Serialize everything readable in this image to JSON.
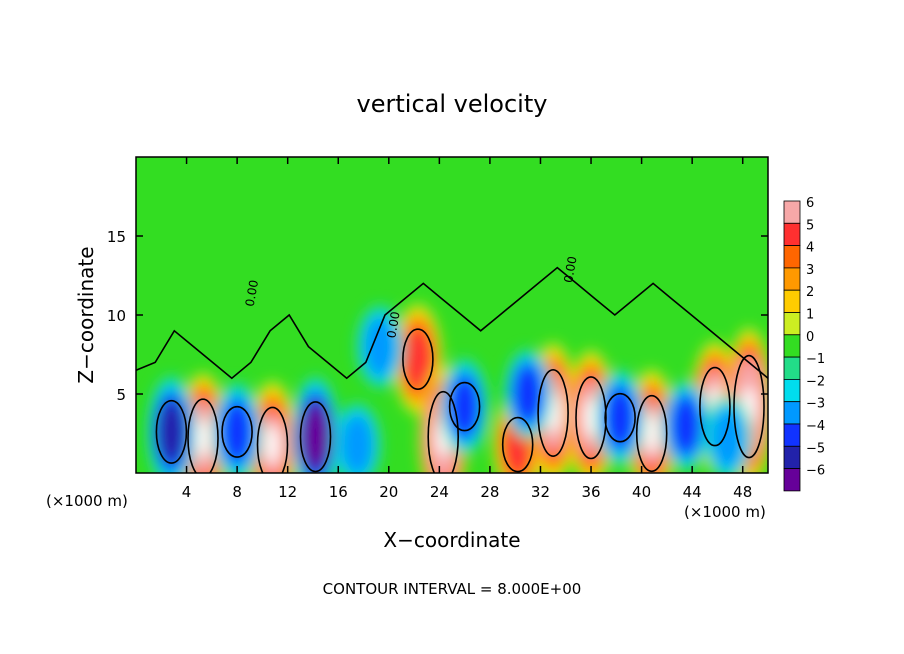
{
  "chart_data": {
    "type": "heatmap",
    "title": "vertical velocity",
    "xlabel": "X−coordinate",
    "ylabel": "Z−coordinate",
    "x_unit_left": "(×1000 m)",
    "x_unit_right": "(×1000 m)",
    "xlim": [
      0,
      50
    ],
    "ylim": [
      0,
      20
    ],
    "xticks": [
      4,
      8,
      12,
      16,
      20,
      24,
      28,
      32,
      36,
      40,
      44,
      48
    ],
    "xtick_labels": [
      "4",
      "8",
      "12",
      "16",
      "20",
      "24",
      "28",
      "32",
      "36",
      "40",
      "44",
      "48"
    ],
    "yticks": [
      5,
      10,
      15
    ],
    "ytick_labels": [
      "5",
      "10",
      "15"
    ],
    "colorbar": {
      "levels": [
        6,
        5,
        4,
        3,
        2,
        1,
        0,
        -1,
        -2,
        -3,
        -4,
        -5,
        -6
      ],
      "labels": [
        "6",
        "5",
        "4",
        "3",
        "2",
        "1",
        "0",
        "−1",
        "−2",
        "−3",
        "−4",
        "−5",
        "−6"
      ],
      "colors": [
        "#f7a8a8",
        "#ff3030",
        "#ff6600",
        "#ff9900",
        "#ffcc00",
        "#ccee22",
        "#33dd22",
        "#22dd88",
        "#00ddee",
        "#0099ff",
        "#1133ff",
        "#2222aa",
        "#660099"
      ]
    },
    "contour_label": "0.00",
    "cells": [
      {
        "x": 5.3,
        "z": 2.2,
        "w": 6.5
      },
      {
        "x": 10.8,
        "z": 1.8,
        "w": 6.2
      },
      {
        "x": 22.3,
        "z": 7.2,
        "w": 5.0
      },
      {
        "x": 24.3,
        "z": 2.3,
        "w": 7.5
      },
      {
        "x": 30.2,
        "z": 1.8,
        "w": 4.5
      },
      {
        "x": 33.0,
        "z": 3.8,
        "w": 7.2
      },
      {
        "x": 36.0,
        "z": 3.5,
        "w": 6.8
      },
      {
        "x": 40.8,
        "z": 2.5,
        "w": 6.3
      },
      {
        "x": 45.8,
        "z": 4.2,
        "w": 6.5
      },
      {
        "x": 48.5,
        "z": 4.2,
        "w": 8.5
      },
      {
        "x": 2.8,
        "z": 2.6,
        "w": -5.2
      },
      {
        "x": 14.2,
        "z": 2.3,
        "w": -5.8
      },
      {
        "x": 8.0,
        "z": 2.6,
        "w": -4.2
      },
      {
        "x": 19.3,
        "z": 8.0,
        "w": -3.0
      },
      {
        "x": 26.0,
        "z": 4.2,
        "w": -4.0
      },
      {
        "x": 31.0,
        "z": 5.0,
        "w": -3.5
      },
      {
        "x": 38.3,
        "z": 3.5,
        "w": -4.0
      },
      {
        "x": 43.5,
        "z": 3.0,
        "w": -3.5
      },
      {
        "x": 46.8,
        "z": 2.2,
        "w": -3.0
      },
      {
        "x": 17.5,
        "z": 1.8,
        "w": -3.0
      }
    ],
    "contour_label_positions": [
      {
        "x": 9.3,
        "z": 10.5
      },
      {
        "x": 20.5,
        "z": 8.5
      },
      {
        "x": 34.5,
        "z": 12.0
      }
    ]
  },
  "footer": "CONTOUR INTERVAL =  8.000E+00"
}
